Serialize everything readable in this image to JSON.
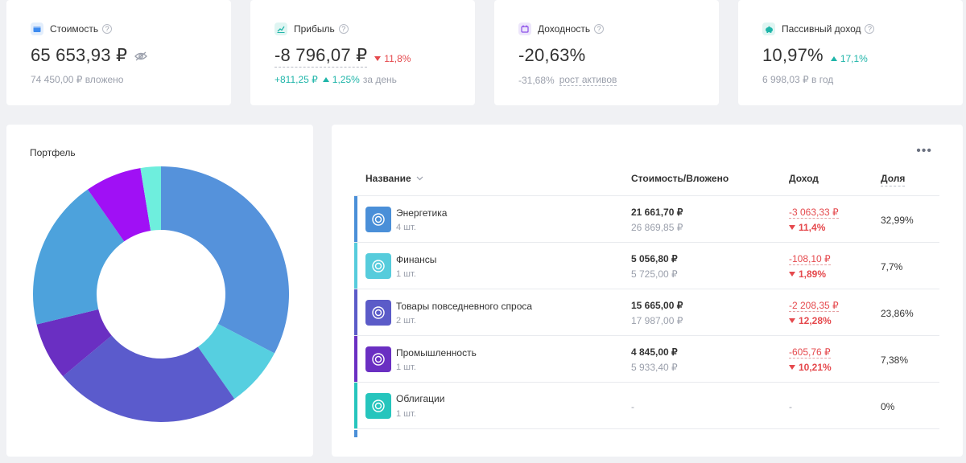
{
  "colors": {
    "negative": "#e5494d",
    "positive": "#1fb5a9",
    "energy": "#4a8fd8",
    "finance": "#56ccdc",
    "consumer": "#5b5bc8",
    "industry": "#6a2fc2",
    "bonds": "#26c5bd"
  },
  "stats": {
    "value": {
      "title": "Стоимость",
      "icon": "wallet-icon",
      "help": "?",
      "main": "65 653,93 ₽",
      "sub": "74 450,00 ₽ вложено"
    },
    "profit": {
      "title": "Прибыль",
      "icon": "chart-line-icon",
      "help": "?",
      "main": "-8 796,07 ₽",
      "delta": "11,8%",
      "sub_amount": "+811,25 ₽",
      "sub_delta": "1,25%",
      "sub_suffix": "за день"
    },
    "yield": {
      "title": "Доходность",
      "icon": "calendar-icon",
      "help": "?",
      "main": "-20,63%",
      "sub_value": "-31,68%",
      "sub_label": "рост активов"
    },
    "passive": {
      "title": "Пассивный доход",
      "icon": "piggy-bank-icon",
      "help": "?",
      "main": "10,97%",
      "delta": "17,1%",
      "sub": "6 998,03 ₽ в год"
    }
  },
  "portfolio": {
    "title": "Портфель"
  },
  "chart_data": {
    "type": "pie",
    "title": "Портфель",
    "slices": [
      {
        "label": "Энергетика",
        "value": 32.99,
        "color": "#5592db"
      },
      {
        "label": "Финансы",
        "value": 7.7,
        "color": "#56cfe0"
      },
      {
        "label": "Товары повседневного спроса",
        "value": 23.86,
        "color": "#5b5bcc"
      },
      {
        "label": "Промышленность",
        "value": 7.38,
        "color": "#6a2fc2"
      },
      {
        "label": "",
        "value": 19.3,
        "color": "#4da2dc"
      },
      {
        "label": "",
        "value": 7.2,
        "color": "#a010f5"
      },
      {
        "label": "",
        "value": 2.6,
        "color": "#6eeedd"
      }
    ]
  },
  "table": {
    "menu": "•••",
    "headers": {
      "name": "Название",
      "cost": "Стоимость/Вложено",
      "income": "Доход",
      "share": "Доля"
    },
    "rows": [
      {
        "name": "Энергетика",
        "qty": "4 шт.",
        "cost": "21 661,70 ₽",
        "invested": "26 869,85 ₽",
        "income": "-3 063,33 ₽",
        "pct": "11,4%",
        "share": "32,99%"
      },
      {
        "name": "Финансы",
        "qty": "1 шт.",
        "cost": "5 056,80 ₽",
        "invested": "5 725,00 ₽",
        "income": "-108,10 ₽",
        "pct": "1,89%",
        "share": "7,7%"
      },
      {
        "name": "Товары повседневного спроса",
        "qty": "2 шт.",
        "cost": "15 665,00 ₽",
        "invested": "17 987,00 ₽",
        "income": "-2 208,35 ₽",
        "pct": "12,28%",
        "share": "23,86%"
      },
      {
        "name": "Промышленность",
        "qty": "1 шт.",
        "cost": "4 845,00 ₽",
        "invested": "5 933,40 ₽",
        "income": "-605,76 ₽",
        "pct": "10,21%",
        "share": "7,38%"
      },
      {
        "name": "Облигации",
        "qty": "1 шт.",
        "cost_dash": "-",
        "income_dash": "-",
        "share": "0%"
      }
    ]
  }
}
